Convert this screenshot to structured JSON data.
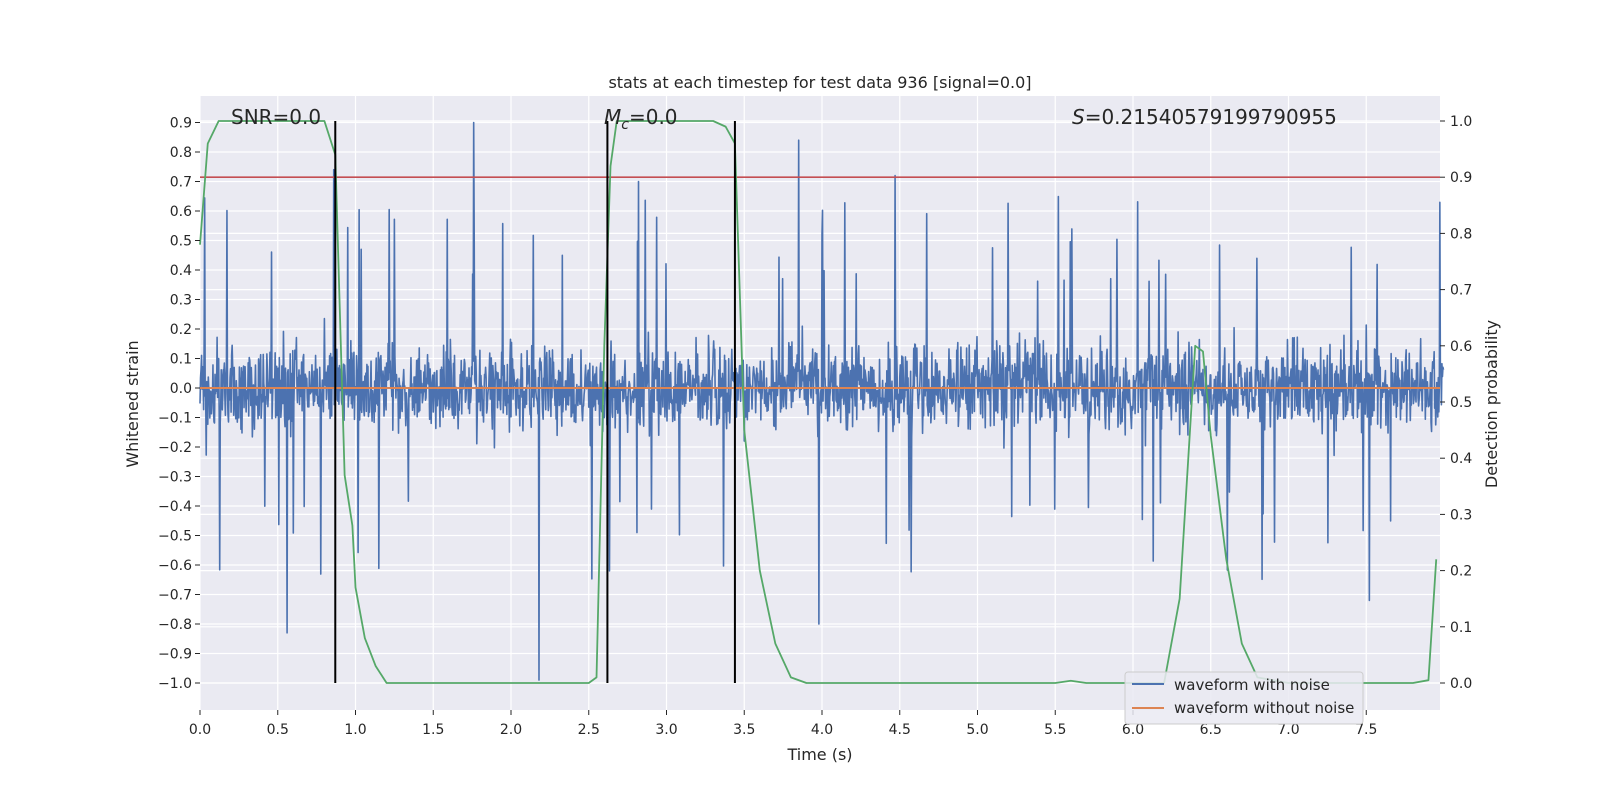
{
  "chart_data": {
    "type": "line",
    "title": "stats at each timestep for test data 936 [signal=0.0]",
    "xlabel": "Time (s)",
    "ylabel_left": "Whitened strain",
    "ylabel_right": "Detection probability",
    "xlim": [
      0.0,
      8.0
    ],
    "ylim_left": [
      -1.08,
      1.0
    ],
    "ylim_right": [
      -0.05,
      1.05
    ],
    "xticks": [
      "0.0",
      "0.5",
      "1.0",
      "1.5",
      "2.0",
      "2.5",
      "3.0",
      "3.5",
      "4.0",
      "4.5",
      "5.0",
      "5.5",
      "6.0",
      "6.5",
      "7.0",
      "7.5"
    ],
    "yticks_left": [
      "0.9",
      "0.8",
      "0.7",
      "0.6",
      "0.5",
      "0.4",
      "0.3",
      "0.2",
      "0.1",
      "0.0",
      "−0.1",
      "−0.2",
      "−0.3",
      "−0.4",
      "−0.5",
      "−0.6",
      "−0.7",
      "−0.8",
      "−0.9",
      "−1.0"
    ],
    "yticks_right": [
      "1.0",
      "0.9",
      "0.8",
      "0.7",
      "0.6",
      "0.5",
      "0.4",
      "0.3",
      "0.2",
      "0.1",
      "0.0"
    ],
    "grid": true,
    "legend_position": "lower right",
    "annotations": {
      "snr": "SNR=0.0",
      "mc_symbol": "M",
      "mc_sub": "c",
      "mc_value": "=0.0",
      "s_symbol": "S",
      "s_value": "=0.21540579199790955"
    },
    "legend": [
      "waveform with noise",
      "waveform without noise"
    ],
    "colors": {
      "noise": "#4c72b0",
      "clean": "#dd8452",
      "probability": "#55a868",
      "threshold": "#c44e52",
      "markers": "#000000",
      "background": "#eaeaf2",
      "grid": "#ffffff"
    },
    "threshold_probability": 0.9,
    "marker_lines_s": [
      0.87,
      2.62,
      3.44
    ],
    "noise_spikes": [
      {
        "x": 0.56,
        "y": -0.83
      },
      {
        "x": 0.86,
        "y": 0.74
      },
      {
        "x": 1.76,
        "y": 0.9
      },
      {
        "x": 2.18,
        "y": -0.99
      },
      {
        "x": 2.82,
        "y": 0.7
      },
      {
        "x": 3.85,
        "y": 0.84
      },
      {
        "x": 4.47,
        "y": 0.72
      },
      {
        "x": 3.98,
        "y": -0.8
      },
      {
        "x": 7.52,
        "y": -0.72
      }
    ],
    "series": [
      {
        "name": "detection probability",
        "axis": "right",
        "x": [
          0.0,
          0.05,
          0.12,
          0.3,
          0.6,
          0.8,
          0.87,
          0.93,
          0.98,
          1.0,
          1.06,
          1.13,
          1.2,
          1.3,
          1.5,
          2.0,
          2.4,
          2.5,
          2.55,
          2.6,
          2.64,
          2.68,
          2.72,
          3.0,
          3.3,
          3.38,
          3.44,
          3.5,
          3.6,
          3.7,
          3.8,
          3.9,
          4.5,
          5.0,
          5.5,
          5.6,
          5.7,
          6.0,
          6.2,
          6.3,
          6.4,
          6.45,
          6.5,
          6.6,
          6.7,
          6.8,
          7.0,
          7.5,
          7.8,
          7.9,
          7.95
        ],
        "values": [
          0.78,
          0.96,
          1.0,
          1.0,
          1.0,
          1.0,
          0.94,
          0.37,
          0.28,
          0.17,
          0.08,
          0.03,
          0.0,
          0.0,
          0.0,
          0.0,
          0.0,
          0.0,
          0.01,
          0.6,
          0.92,
          1.0,
          1.0,
          1.0,
          1.0,
          0.99,
          0.96,
          0.45,
          0.2,
          0.07,
          0.01,
          0.0,
          0.0,
          0.0,
          0.0,
          0.004,
          0.0,
          0.0,
          0.0,
          0.15,
          0.6,
          0.59,
          0.44,
          0.22,
          0.07,
          0.01,
          0.0,
          0.0,
          0.0,
          0.005,
          0.22
        ]
      }
    ]
  }
}
